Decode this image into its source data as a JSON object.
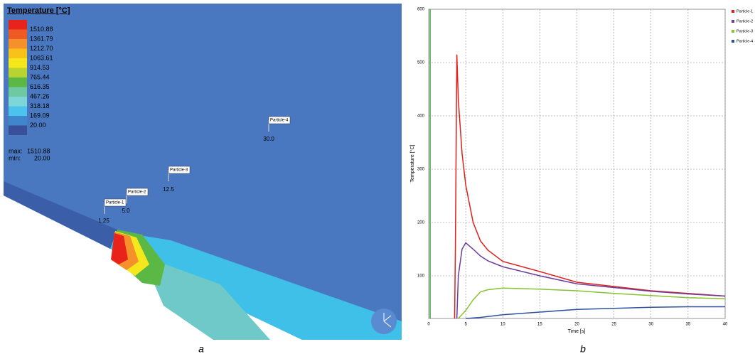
{
  "simulation": {
    "legend_title": "Temperature [°C]",
    "legend_colors": [
      "#e8231c",
      "#ef5a24",
      "#f5912a",
      "#f9c21a",
      "#f4e81c",
      "#b9d431",
      "#5cb844",
      "#6ec9a2",
      "#7ed6d6",
      "#4cc3ec",
      "#3f86cc",
      "#3a4f9a"
    ],
    "legend_labels": [
      "1510.88",
      "1361.79",
      "1212.70",
      "1063.61",
      "914.53",
      "765.44",
      "616.35",
      "467.26",
      "318.18",
      "169.09",
      "20.00"
    ],
    "max_label": "max:",
    "max_value": "1510.88",
    "min_label": "min:",
    "min_value": "20.00",
    "particles": [
      {
        "name": "Particle-1",
        "value": "1.25"
      },
      {
        "name": "Particle-2",
        "value": "5.0"
      },
      {
        "name": "Particle-3",
        "value": "12.5"
      },
      {
        "name": "Particle-4",
        "value": "30.0"
      }
    ],
    "caption": "a"
  },
  "chart_data": {
    "type": "line",
    "caption": "b",
    "x_label": "Time [s]",
    "y_label": "Temperature [°C]",
    "xlim": [
      0,
      40
    ],
    "xticks": [
      0,
      5,
      10,
      15,
      20,
      25,
      30,
      35,
      40
    ],
    "ylim": [
      20,
      600
    ],
    "yticks": [
      100,
      200,
      300,
      400,
      500,
      600
    ],
    "grid": true,
    "series": [
      {
        "name": "Particle-1",
        "color": "#e0201c",
        "x": [
          3.5,
          3.6,
          3.8,
          4.0,
          4.5,
          5,
          6,
          7,
          8,
          10,
          15,
          20,
          25,
          30,
          35,
          40
        ],
        "values": [
          20,
          150,
          515,
          430,
          330,
          270,
          200,
          165,
          148,
          127,
          108,
          88,
          80,
          72,
          67,
          62
        ]
      },
      {
        "name": "Particle-2",
        "color": "#6a3d9a",
        "x": [
          3.8,
          4.0,
          4.5,
          5,
          6,
          7,
          8,
          10,
          15,
          20,
          25,
          30,
          35,
          40
        ],
        "values": [
          20,
          100,
          150,
          162,
          150,
          137,
          128,
          117,
          100,
          85,
          78,
          71,
          66,
          62
        ]
      },
      {
        "name": "Particle-3",
        "color": "#86c232",
        "x": [
          4,
          5,
          6,
          7,
          8,
          10,
          15,
          20,
          25,
          30,
          35,
          40
        ],
        "values": [
          20,
          35,
          55,
          70,
          74,
          77,
          75,
          72,
          67,
          63,
          59,
          57
        ]
      },
      {
        "name": "Particle-4",
        "color": "#2f4f9f",
        "x": [
          5,
          7,
          10,
          15,
          20,
          25,
          30,
          35,
          40
        ],
        "values": [
          20,
          22,
          27,
          32,
          37,
          39,
          41,
          42,
          42
        ]
      }
    ]
  }
}
